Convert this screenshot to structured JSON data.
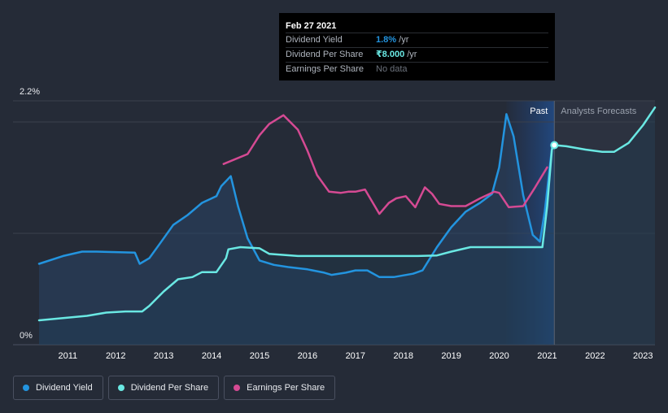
{
  "chart_data": {
    "type": "line",
    "y_axis": {
      "min": 0,
      "max": 2.2,
      "top_label": "2.2%",
      "bottom_label": "0%"
    },
    "x_axis": {
      "min": 2010.4,
      "max": 2023.25,
      "ticks": [
        "2011",
        "2012",
        "2013",
        "2014",
        "2015",
        "2016",
        "2017",
        "2018",
        "2019",
        "2020",
        "2021",
        "2022",
        "2023"
      ]
    },
    "regions": {
      "past_label": "Past",
      "forecast_label": "Analysts Forecasts",
      "divider_x": 2021.15,
      "highlight_start": 2020.15
    },
    "series": [
      {
        "name": "Dividend Yield",
        "color": "#2394df",
        "unit": "%",
        "points": [
          [
            2010.4,
            0.73
          ],
          [
            2010.9,
            0.8
          ],
          [
            2011.3,
            0.84
          ],
          [
            2011.6,
            0.84
          ],
          [
            2012.0,
            0.835
          ],
          [
            2012.4,
            0.83
          ],
          [
            2012.5,
            0.73
          ],
          [
            2012.7,
            0.78
          ],
          [
            2012.9,
            0.9
          ],
          [
            2013.2,
            1.08
          ],
          [
            2013.5,
            1.17
          ],
          [
            2013.8,
            1.28
          ],
          [
            2014.1,
            1.34
          ],
          [
            2014.2,
            1.43
          ],
          [
            2014.4,
            1.52
          ],
          [
            2014.55,
            1.25
          ],
          [
            2014.75,
            0.96
          ],
          [
            2015.0,
            0.76
          ],
          [
            2015.3,
            0.72
          ],
          [
            2015.6,
            0.7
          ],
          [
            2016.0,
            0.68
          ],
          [
            2016.35,
            0.65
          ],
          [
            2016.5,
            0.63
          ],
          [
            2016.8,
            0.65
          ],
          [
            2017.0,
            0.67
          ],
          [
            2017.25,
            0.67
          ],
          [
            2017.5,
            0.61
          ],
          [
            2017.8,
            0.61
          ],
          [
            2018.2,
            0.64
          ],
          [
            2018.4,
            0.67
          ],
          [
            2018.7,
            0.88
          ],
          [
            2019.0,
            1.06
          ],
          [
            2019.3,
            1.2
          ],
          [
            2019.6,
            1.28
          ],
          [
            2019.85,
            1.36
          ],
          [
            2020.0,
            1.6
          ],
          [
            2020.15,
            2.08
          ],
          [
            2020.3,
            1.88
          ],
          [
            2020.5,
            1.35
          ],
          [
            2020.7,
            0.99
          ],
          [
            2020.85,
            0.93
          ],
          [
            2020.95,
            1.2
          ],
          [
            2021.1,
            1.77
          ],
          [
            2021.15,
            1.8
          ]
        ]
      },
      {
        "name": "Dividend Per Share",
        "color": "#6ae8e3",
        "unit": "₹",
        "points": [
          [
            2010.4,
            0.22
          ],
          [
            2011.4,
            0.26
          ],
          [
            2011.8,
            0.29
          ],
          [
            2012.2,
            0.3
          ],
          [
            2012.55,
            0.3
          ],
          [
            2012.7,
            0.35
          ],
          [
            2013.0,
            0.48
          ],
          [
            2013.3,
            0.59
          ],
          [
            2013.6,
            0.61
          ],
          [
            2013.8,
            0.655
          ],
          [
            2014.1,
            0.655
          ],
          [
            2014.3,
            0.78
          ],
          [
            2014.35,
            0.86
          ],
          [
            2014.6,
            0.88
          ],
          [
            2015.0,
            0.87
          ],
          [
            2015.2,
            0.82
          ],
          [
            2015.8,
            0.8
          ],
          [
            2016.5,
            0.8
          ],
          [
            2017.5,
            0.8
          ],
          [
            2018.3,
            0.8
          ],
          [
            2018.7,
            0.805
          ],
          [
            2019.0,
            0.84
          ],
          [
            2019.4,
            0.88
          ],
          [
            2020.0,
            0.88
          ],
          [
            2020.8,
            0.88
          ],
          [
            2020.9,
            0.88
          ],
          [
            2021.0,
            1.25
          ],
          [
            2021.1,
            1.76
          ],
          [
            2021.15,
            1.8
          ],
          [
            2021.4,
            1.79
          ],
          [
            2021.8,
            1.76
          ],
          [
            2022.15,
            1.74
          ],
          [
            2022.4,
            1.74
          ],
          [
            2022.7,
            1.82
          ],
          [
            2023.0,
            1.98
          ],
          [
            2023.25,
            2.14
          ]
        ]
      },
      {
        "name": "Earnings Per Share",
        "color": "#d54a93",
        "unit": "",
        "points": [
          [
            2014.25,
            1.63
          ],
          [
            2014.75,
            1.72
          ],
          [
            2015.0,
            1.89
          ],
          [
            2015.2,
            1.99
          ],
          [
            2015.5,
            2.07
          ],
          [
            2015.8,
            1.94
          ],
          [
            2016.0,
            1.75
          ],
          [
            2016.2,
            1.53
          ],
          [
            2016.45,
            1.38
          ],
          [
            2016.7,
            1.37
          ],
          [
            2016.85,
            1.38
          ],
          [
            2017.0,
            1.38
          ],
          [
            2017.2,
            1.4
          ],
          [
            2017.5,
            1.18
          ],
          [
            2017.7,
            1.28
          ],
          [
            2017.85,
            1.32
          ],
          [
            2018.05,
            1.34
          ],
          [
            2018.25,
            1.24
          ],
          [
            2018.45,
            1.42
          ],
          [
            2018.6,
            1.36
          ],
          [
            2018.75,
            1.27
          ],
          [
            2019.0,
            1.25
          ],
          [
            2019.3,
            1.25
          ],
          [
            2019.6,
            1.32
          ],
          [
            2019.9,
            1.38
          ],
          [
            2020.0,
            1.37
          ],
          [
            2020.2,
            1.24
          ],
          [
            2020.5,
            1.25
          ],
          [
            2020.75,
            1.42
          ],
          [
            2021.0,
            1.6
          ]
        ]
      }
    ],
    "marker": {
      "series": "Dividend Per Share",
      "x": 2021.15,
      "y": 1.8
    }
  },
  "tooltip": {
    "date": "Feb 27 2021",
    "rows": [
      {
        "label": "Dividend Yield",
        "value": "1.8%",
        "unit": " /yr",
        "color": "#2394df"
      },
      {
        "label": "Dividend Per Share",
        "value": "₹8.000",
        "unit": " /yr",
        "color": "#6ae8e3"
      },
      {
        "label": "Earnings Per Share",
        "value": "No data",
        "unit": "",
        "color": "#6c727c"
      }
    ]
  },
  "legend": [
    {
      "label": "Dividend Yield",
      "color": "#2394df"
    },
    {
      "label": "Dividend Per Share",
      "color": "#6ae8e3"
    },
    {
      "label": "Earnings Per Share",
      "color": "#d54a93"
    }
  ]
}
